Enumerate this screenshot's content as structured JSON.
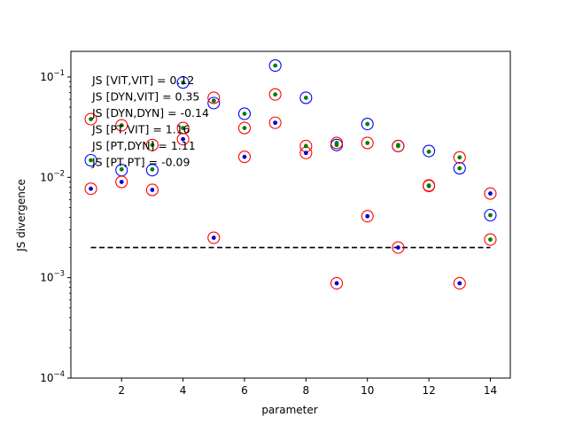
{
  "chart_data": {
    "type": "scatter",
    "title": "",
    "xlabel": "parameter",
    "ylabel": "JS divergence",
    "xlim": [
      0.35,
      14.65
    ],
    "ylim": [
      0.0001,
      0.18
    ],
    "yscale": "log",
    "x_ticks": [
      2,
      4,
      6,
      8,
      10,
      12,
      14
    ],
    "y_ticks": [
      {
        "value": 0.0001,
        "base": "10",
        "exp": "−4"
      },
      {
        "value": 0.001,
        "base": "10",
        "exp": "−3"
      },
      {
        "value": 0.01,
        "base": "10",
        "exp": "−2"
      },
      {
        "value": 0.1,
        "base": "10",
        "exp": "−1"
      }
    ],
    "grid": false,
    "threshold_line": {
      "y": 0.002,
      "x_start": 1,
      "x_end": 14,
      "style": "dashed",
      "color": "#000000"
    },
    "annotations": [
      "JS [VIT,VIT] = 0.12",
      "JS [DYN,VIT] = 0.35",
      "JS [DYN,DYN] = -0.14",
      "JS [PT,VIT] = 1.16",
      "JS [PT,DYN] = 1.11",
      "JS [PT,PT] = -0.09"
    ],
    "x": [
      1,
      2,
      3,
      4,
      5,
      6,
      7,
      8,
      9,
      10,
      11,
      12,
      13,
      14
    ],
    "series": [
      {
        "name": "blue-open",
        "marker": "open-circle",
        "color": "#0000ff",
        "values": [
          0.0148,
          0.0118,
          0.0118,
          0.088,
          0.055,
          0.043,
          0.13,
          0.062,
          0.021,
          0.034,
          0.0205,
          0.0183,
          0.0123,
          0.0042
        ]
      },
      {
        "name": "red-open",
        "marker": "open-circle",
        "color": "#ff0000",
        "values": [
          0.0077,
          0.009,
          0.0075,
          0.024,
          0.0025,
          0.016,
          0.035,
          0.0175,
          0.00088,
          0.0041,
          0.002,
          0.0082,
          0.00088,
          0.0069
        ]
      },
      {
        "name": "red-open-2",
        "marker": "open-circle",
        "color": "#ff0000",
        "values": [
          0.038,
          0.033,
          0.021,
          0.031,
          0.062,
          0.031,
          0.067,
          0.0205,
          0.022,
          0.022,
          0.0205,
          0.0083,
          0.0158,
          0.0024
        ]
      },
      {
        "name": "blue-dot",
        "marker": "dot",
        "color": "#0000cc",
        "values": [
          0.0077,
          0.009,
          0.0075,
          0.024,
          0.0025,
          0.016,
          0.035,
          0.0175,
          0.00088,
          0.0041,
          0.002,
          0.0082,
          0.00088,
          0.0069
        ]
      },
      {
        "name": "green-dot",
        "marker": "dot",
        "color": "#008000",
        "values": [
          0.038,
          0.012,
          0.012,
          0.088,
          0.058,
          0.043,
          0.067,
          0.0205,
          0.021,
          0.022,
          0.0205,
          0.018,
          0.0123,
          0.0024
        ]
      },
      {
        "name": "green-dot-2",
        "marker": "dot",
        "color": "#008000",
        "values": [
          0.0148,
          0.033,
          0.021,
          0.031,
          0.058,
          0.031,
          0.13,
          0.062,
          0.022,
          0.034,
          0.021,
          0.0083,
          0.0158,
          0.0042
        ]
      }
    ]
  }
}
